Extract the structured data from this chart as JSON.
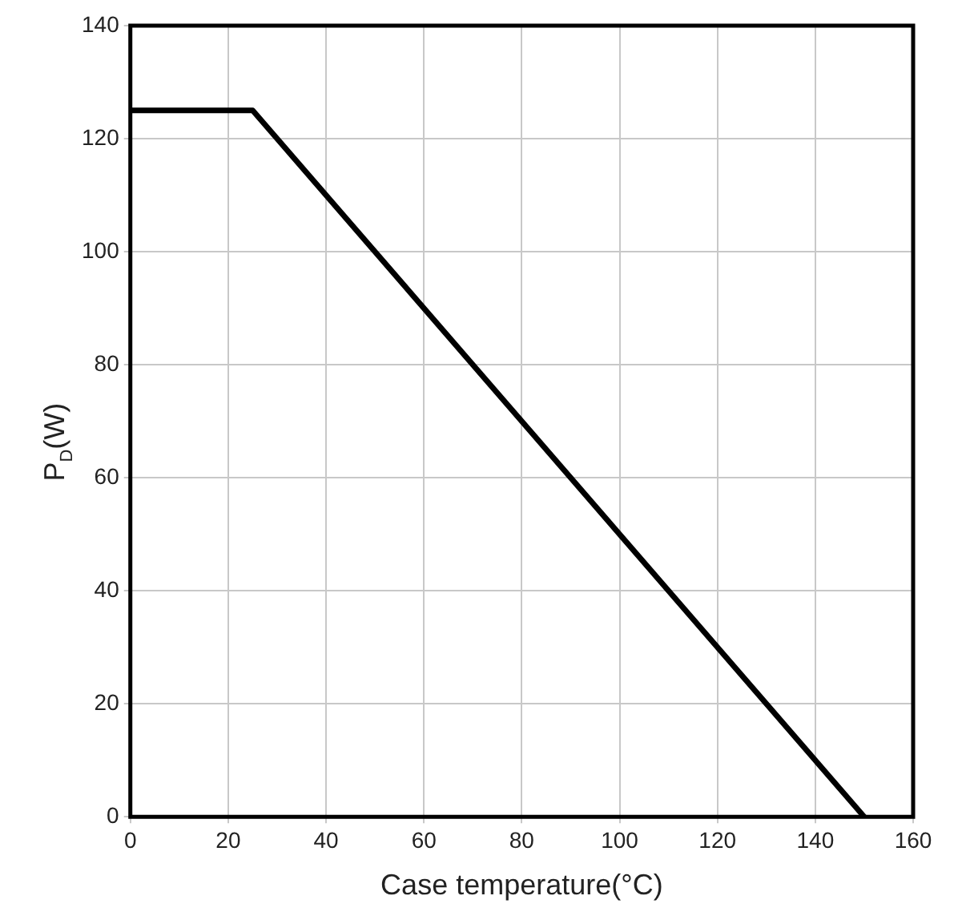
{
  "chart_data": {
    "type": "line",
    "xlabel": "Case temperature(°C)",
    "ylabel": "P$_{D}$(W)",
    "series": [
      {
        "color": "#000000",
        "x": [
          0,
          25,
          150
        ],
        "values": [
          125,
          125,
          0
        ]
      }
    ],
    "xlim": [
      0,
      160
    ],
    "xticks": [
      0,
      20,
      40,
      60,
      80,
      100,
      120,
      140,
      160
    ],
    "ylim": [
      0,
      140
    ],
    "yticks": [
      0,
      20,
      40,
      60,
      80,
      100,
      120,
      140
    ],
    "grid": true,
    "legend": false,
    "marker": "none",
    "line_style": "solid"
  }
}
